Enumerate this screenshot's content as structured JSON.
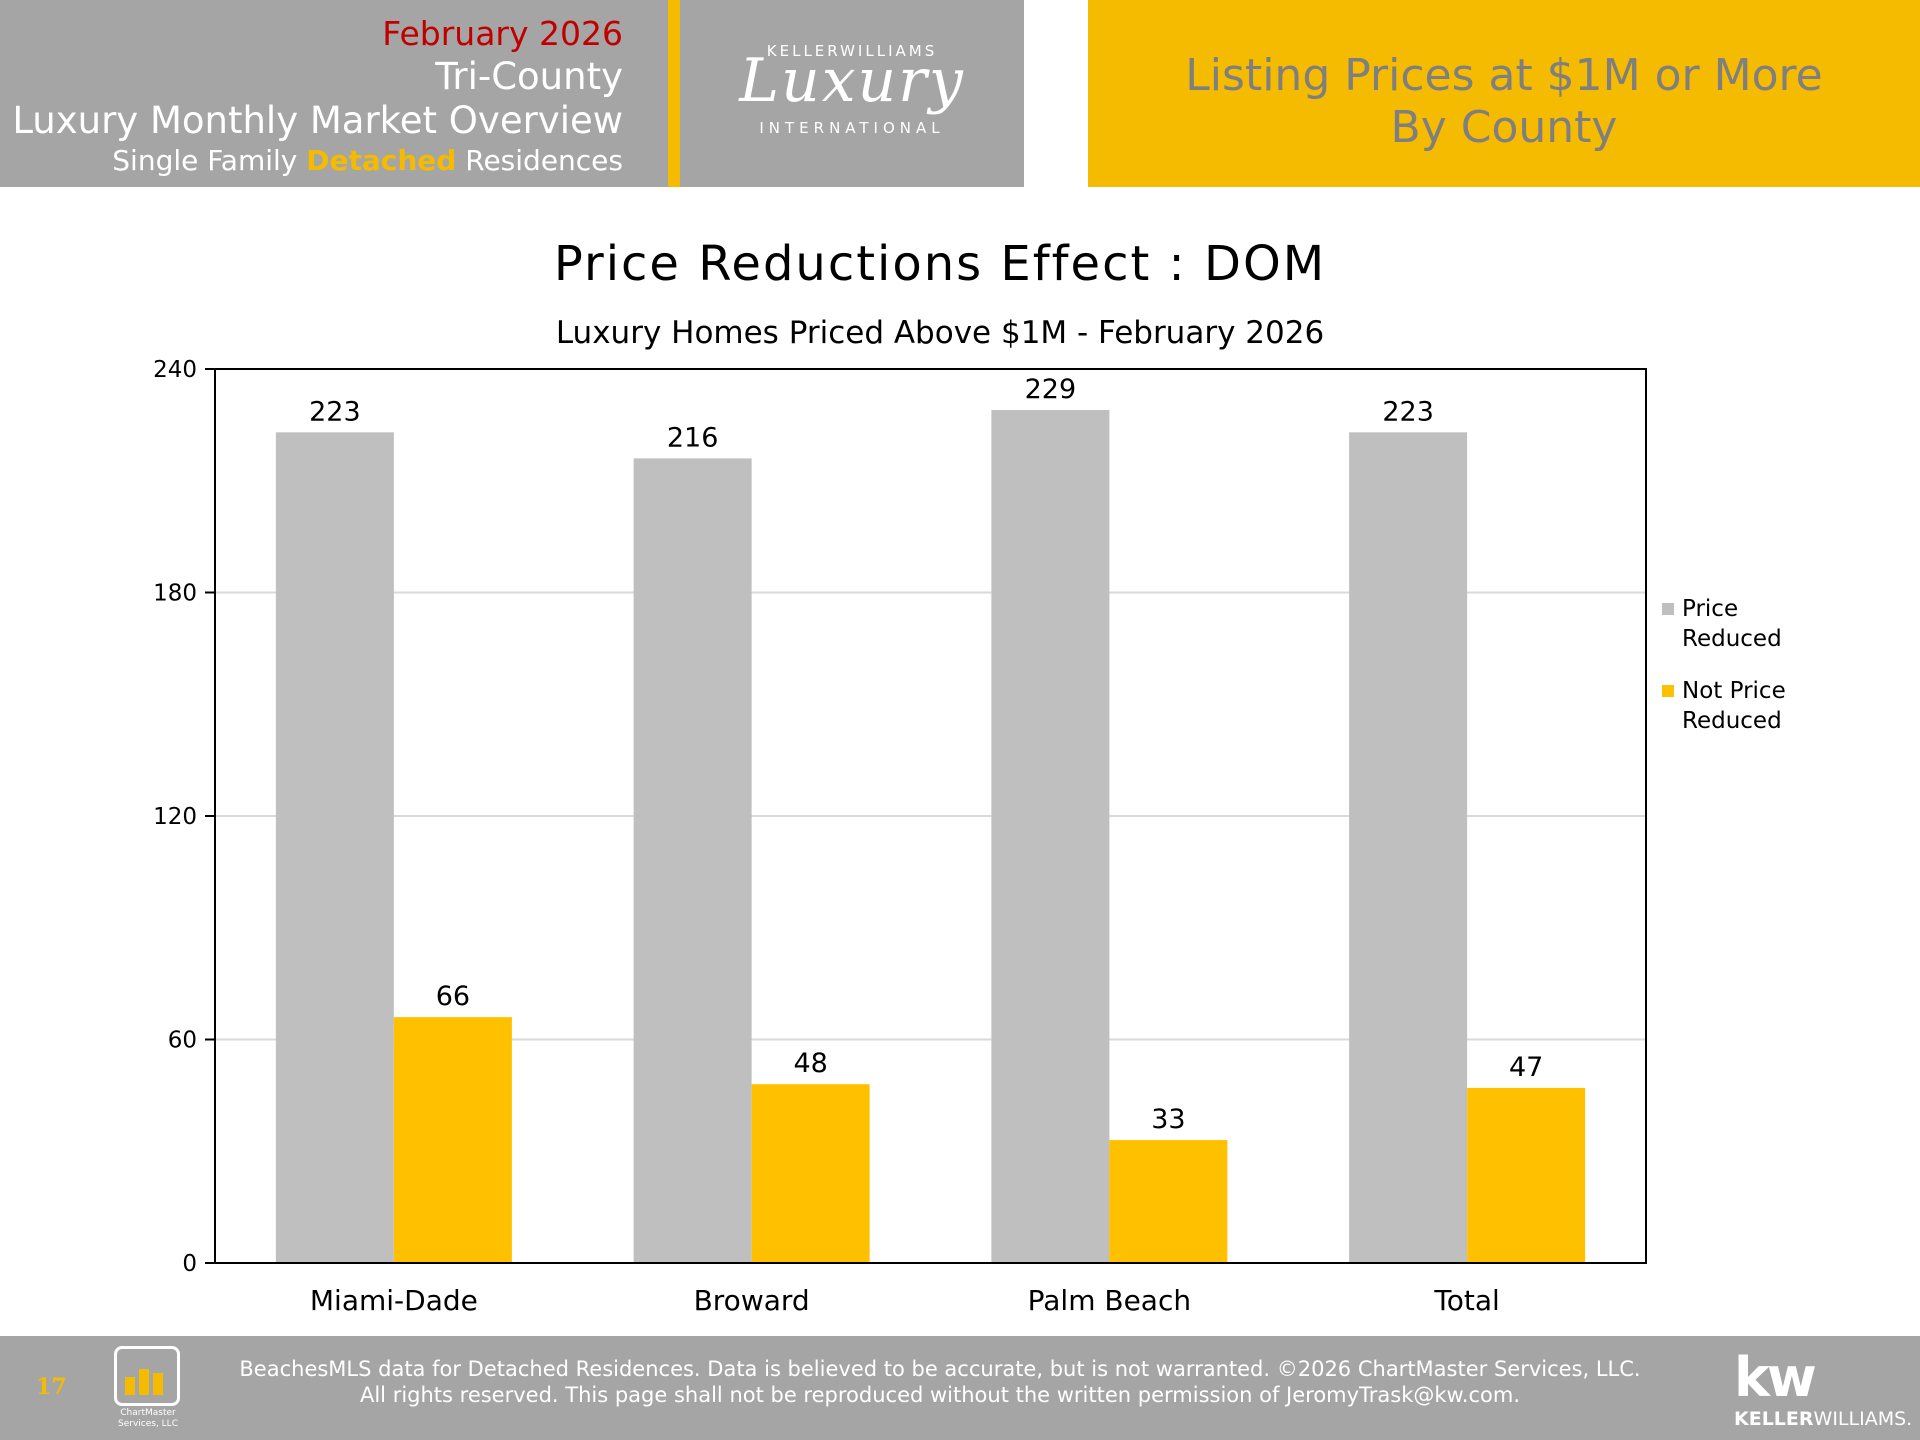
{
  "header": {
    "date": "February 2026",
    "region": "Tri-County",
    "title": "Luxury Monthly Market Overview",
    "subtitle_pre": "Single Family",
    "subtitle_accent": "Detached",
    "subtitle_post": "Residences",
    "logo_top": "KELLERWILLIAMS",
    "logo_script": "Luxury",
    "logo_bottom": "INTERNATIONAL",
    "right_line1": "Listing Prices at $1M or More",
    "right_line2": "By County"
  },
  "chart_data": {
    "type": "bar",
    "title": "Price Reductions Effect : DOM",
    "subtitle": "Luxury Homes Priced Above $1M - February 2026",
    "categories": [
      "Miami-Dade",
      "Broward",
      "Palm Beach",
      "Total"
    ],
    "series": [
      {
        "name": "Price Reduced",
        "values": [
          223,
          216,
          229,
          223
        ],
        "color": "#bfbfbf"
      },
      {
        "name": "Not Price Reduced",
        "values": [
          66,
          48,
          33,
          47
        ],
        "color": "#ffc000"
      }
    ],
    "ylim": [
      0,
      240
    ],
    "yticks": [
      0,
      60,
      120,
      180,
      240
    ],
    "grid": true,
    "legend_position": "right",
    "xlabel": "",
    "ylabel": ""
  },
  "legend": {
    "item1_line1": "Price",
    "item1_line2": "Reduced",
    "item2_line1": "Not Price",
    "item2_line2": "Reduced"
  },
  "footer": {
    "page_number": "17",
    "chartmaster_line1": "ChartMaster",
    "chartmaster_line2": "Services, LLC",
    "disclaimer_line1": "BeachesMLS data for Detached Residences.  Data is believed to be accurate, but is not warranted.   ©2026  ChartMaster Services, LLC.",
    "disclaimer_line2": "All rights reserved. This page shall not be reproduced without the written permission of JeromyTrask@kw.com.",
    "kw_mark": "kw",
    "kw_name_bold": "KELLER",
    "kw_name_rest": "WILLIAMS."
  },
  "colors": {
    "accent": "#f5bb00",
    "header_gray": "#a5a5a5",
    "date_red": "#c00000"
  }
}
